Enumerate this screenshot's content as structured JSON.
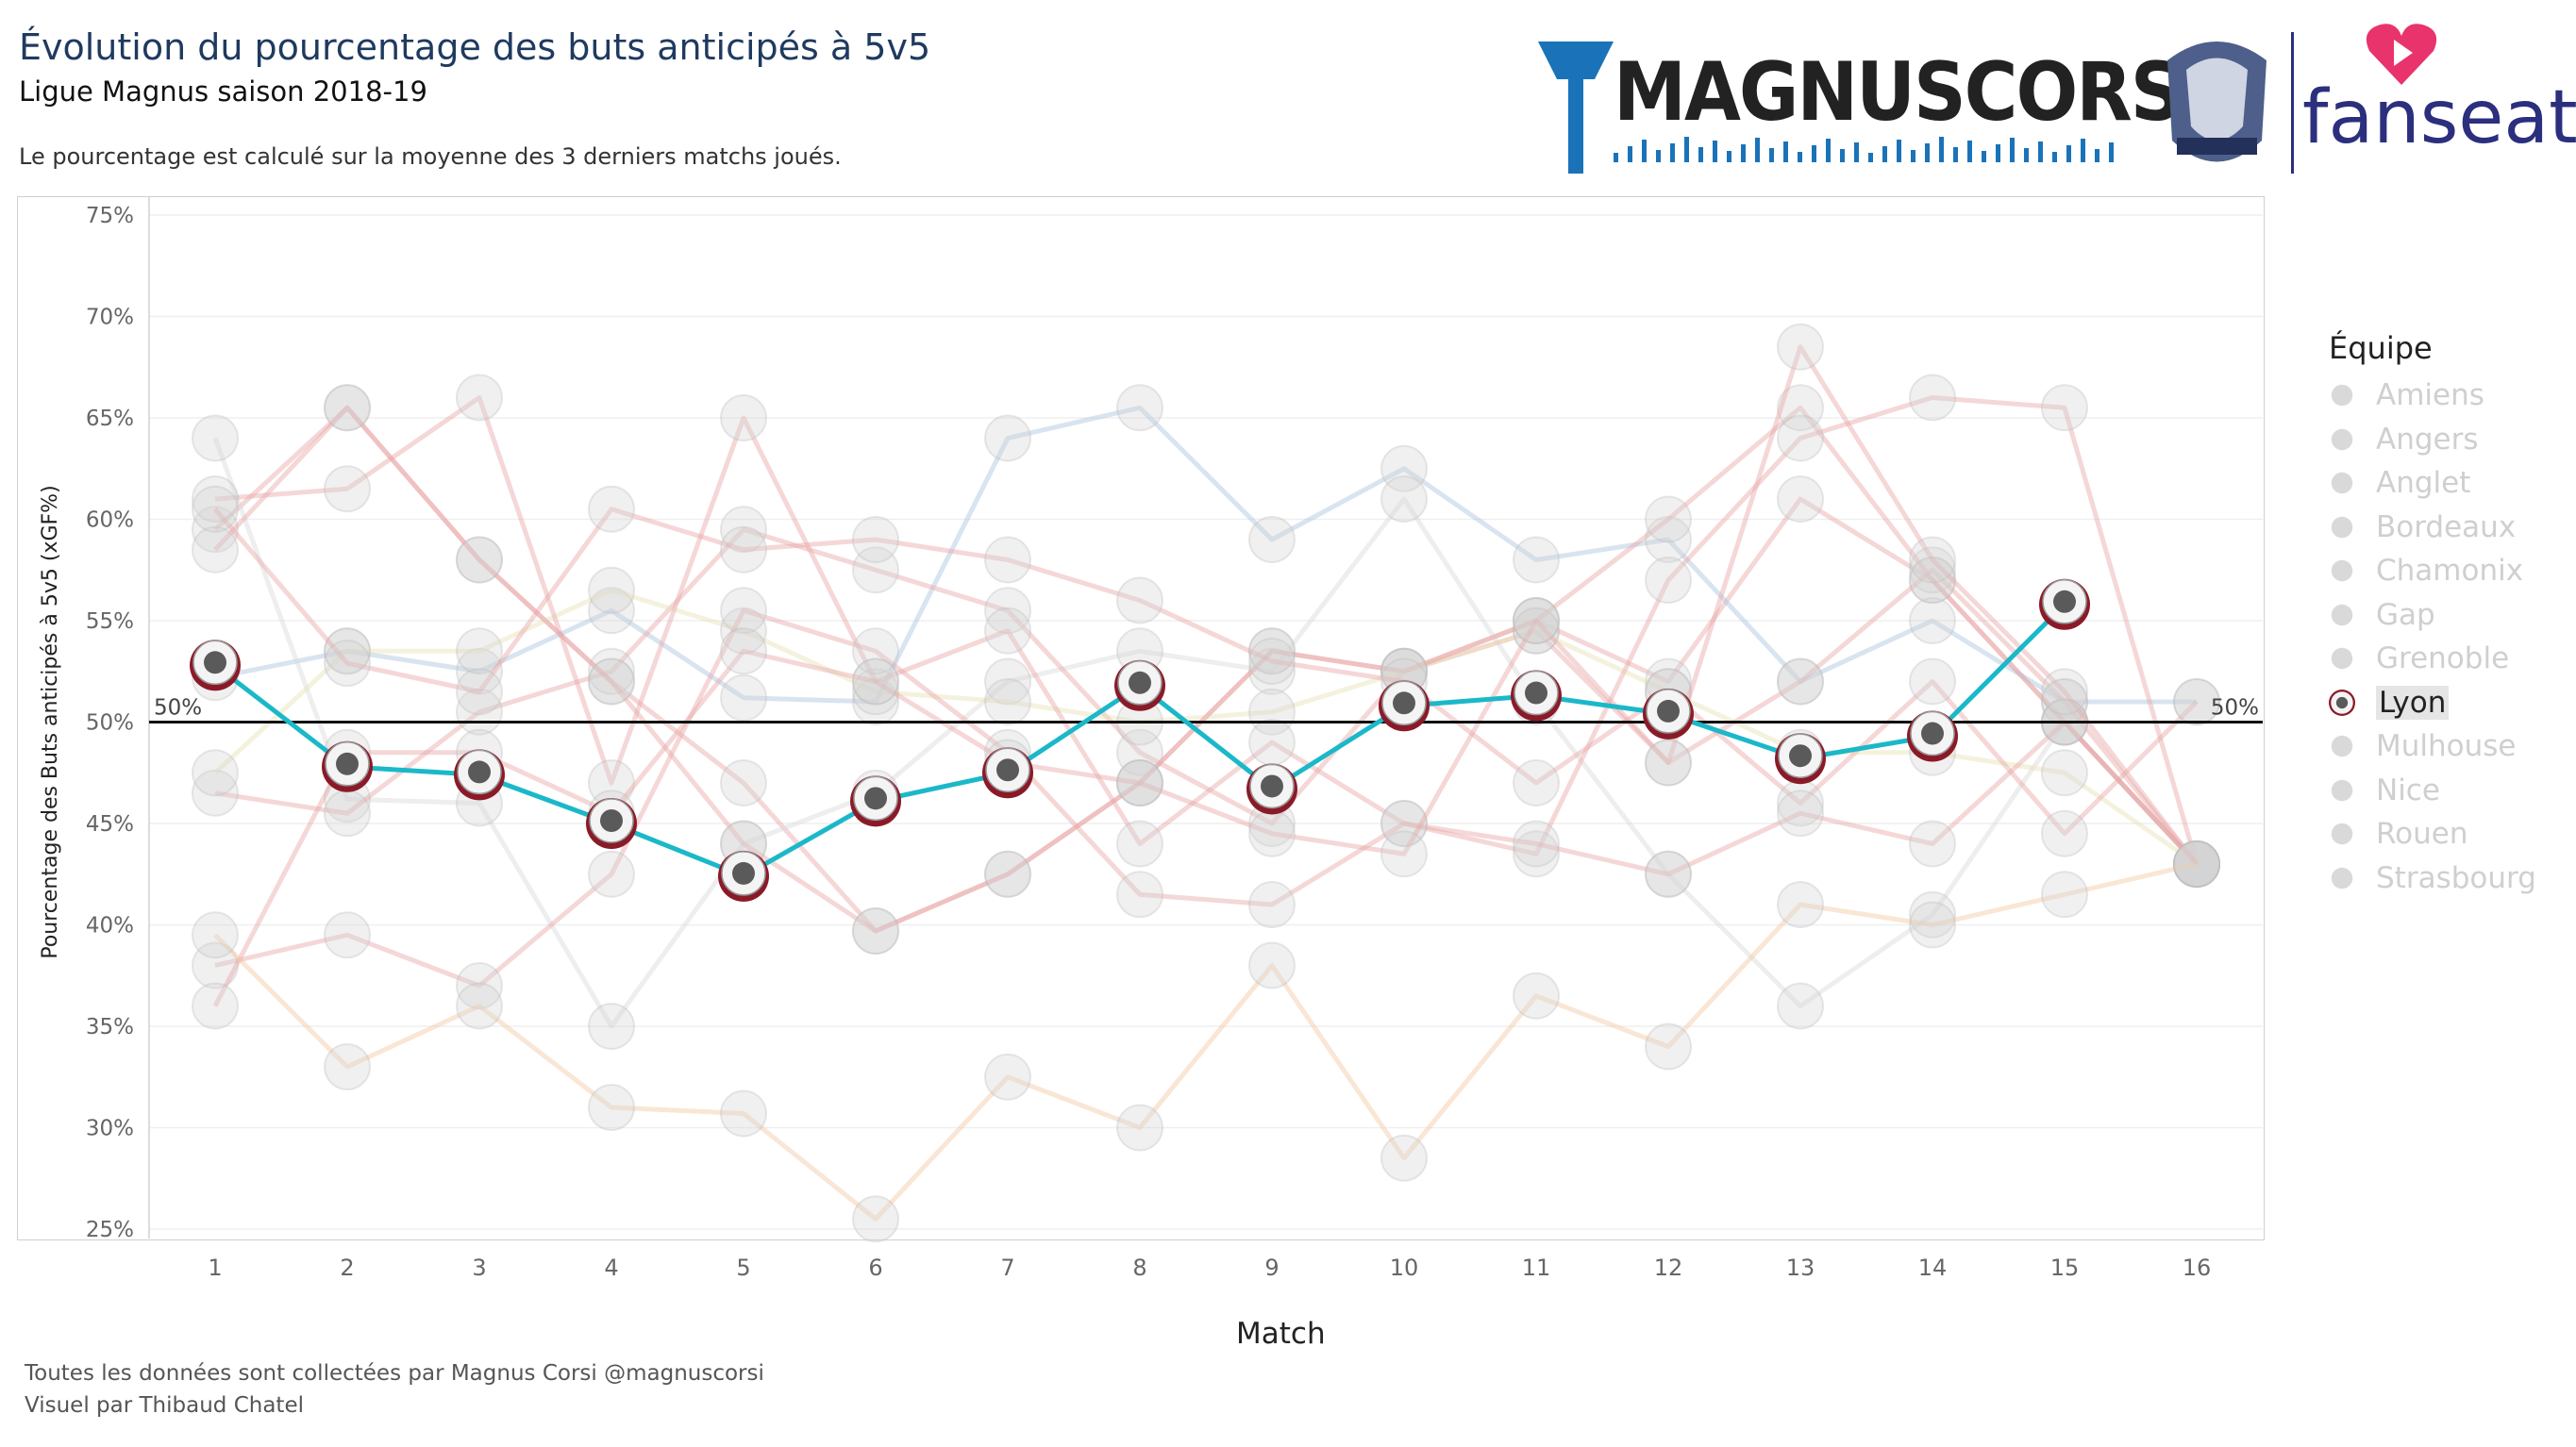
{
  "header": {
    "title": "Évolution du pourcentage des buts anticipés à 5v5",
    "subtitle": "Ligue Magnus saison 2018-19",
    "description": "Le pourcentage est calculé sur la moyenne des 3 derniers matchs joués."
  },
  "logos": {
    "brand_main": "MAGNUSCORSI",
    "brand_right": "fanseat"
  },
  "footer": {
    "line1": "Toutes les données sont collectées par Magnus Corsi @magnuscorsi",
    "line2": "Visuel par Thibaud Chatel"
  },
  "legend": {
    "title": "Équipe",
    "items": [
      "Amiens",
      "Angers",
      "Anglet",
      "Bordeaux",
      "Chamonix",
      "Gap",
      "Grenoble",
      "Lyon",
      "Mulhouse",
      "Nice",
      "Rouen",
      "Strasbourg"
    ],
    "highlighted": "Lyon"
  },
  "chart_data": {
    "type": "line",
    "xlabel": "Match",
    "ylabel": "Pourcentage des Buts anticipés à 5v5 (xGF%)",
    "x": [
      1,
      2,
      3,
      4,
      5,
      6,
      7,
      8,
      9,
      10,
      11,
      12,
      13,
      14,
      15,
      16
    ],
    "ylim": [
      25,
      75
    ],
    "yticks": [
      "25%",
      "30%",
      "35%",
      "40%",
      "45%",
      "50%",
      "55%",
      "60%",
      "65%",
      "70%",
      "75%"
    ],
    "reference_line": {
      "value": 50,
      "label": "50%"
    },
    "grid": "horizontal",
    "legend_position": "right",
    "highlight_color": "#1bb8c9",
    "series": [
      {
        "name": "Amiens",
        "color": "#e8a6a6",
        "values": [
          59.5,
          65.5,
          58,
          52,
          47,
          39.7,
          42.5,
          47,
          53.5,
          52.5,
          55,
          52,
          61,
          57,
          50,
          43
        ]
      },
      {
        "name": "Angers",
        "color": "#a9c4dd",
        "values": [
          52.2,
          53.5,
          52.5,
          55.5,
          51.2,
          51,
          64,
          65.5,
          59,
          62.5,
          58,
          59,
          52,
          55,
          51,
          51
        ]
      },
      {
        "name": "Anglet",
        "color": "#d9d9d9",
        "values": [
          64,
          46.2,
          46,
          35,
          44,
          46.5,
          52,
          53.5,
          52.5,
          61,
          51,
          42.5,
          36,
          40.5,
          50,
          43
        ]
      },
      {
        "name": "Bordeaux",
        "color": "#e8a6a6",
        "values": [
          46.5,
          45.5,
          50.5,
          52.5,
          59.5,
          57.5,
          55.5,
          48.5,
          45,
          52.5,
          54.5,
          48,
          52,
          57.5,
          51,
          43
        ]
      },
      {
        "name": "Chamonix",
        "color": "#e6e3b4",
        "values": [
          47.5,
          53.5,
          53.5,
          56.5,
          54.5,
          51.5,
          51,
          50,
          50.5,
          52.5,
          54.5,
          51.5,
          48.5,
          48.5,
          47.5,
          43
        ]
      },
      {
        "name": "Gap",
        "color": "#e8a6a6",
        "values": [
          58.5,
          65.5,
          58,
          52,
          44,
          39.7,
          42.5,
          47,
          53.5,
          52.5,
          55,
          60,
          65.5,
          57,
          50,
          43
        ]
      },
      {
        "name": "Grenoble",
        "color": "#e8a6a6",
        "values": [
          61,
          61.5,
          66,
          47,
          65,
          52,
          54.5,
          44,
          49,
          45,
          43.5,
          57,
          64,
          66,
          65.5,
          43
        ]
      },
      {
        "name": "Lyon",
        "color": "#1bb8c9",
        "values": [
          52.8,
          47.8,
          47.4,
          45,
          42.4,
          46.1,
          47.5,
          51.8,
          46.7,
          50.8,
          51.3,
          50.4,
          48.2,
          49.3,
          55.8,
          null
        ]
      },
      {
        "name": "Mulhouse",
        "color": "#e8a6a6",
        "values": [
          60.5,
          52.9,
          51.5,
          60.5,
          58.5,
          59,
          58,
          56,
          53,
          52,
          47,
          51.5,
          46,
          52,
          44.5,
          51
        ]
      },
      {
        "name": "Nice",
        "color": "#e8a6a6",
        "values": [
          38,
          39.5,
          37,
          42.5,
          55.5,
          53.5,
          48.5,
          41.5,
          41,
          45,
          44,
          42.5,
          45.5,
          44,
          50,
          43
        ]
      },
      {
        "name": "Rouen",
        "color": "#e8a6a6",
        "values": [
          36,
          48.5,
          48.5,
          45.5,
          53.5,
          52,
          48,
          47,
          44.5,
          43.5,
          55,
          48,
          68.5,
          58,
          51.5,
          43
        ]
      },
      {
        "name": "Strasbourg",
        "color": "#f3c8a2",
        "values": [
          39.5,
          33,
          36,
          31,
          30.7,
          25.5,
          32.5,
          30,
          38,
          28.5,
          36.5,
          34,
          41,
          40,
          41.5,
          43
        ]
      }
    ]
  }
}
